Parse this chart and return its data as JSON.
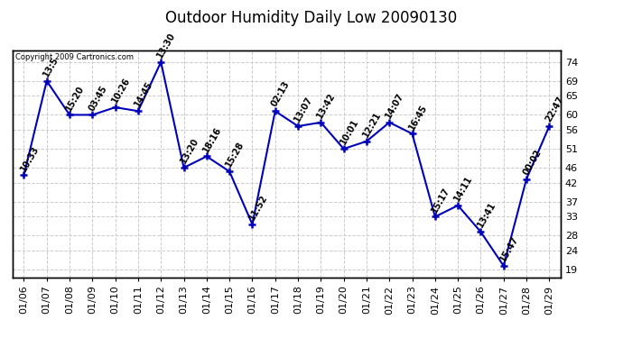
{
  "title": "Outdoor Humidity Daily Low 20090130",
  "copyright": "Copyright 2009 Cartronics.com",
  "x_labels": [
    "01/06",
    "01/07",
    "01/08",
    "01/09",
    "01/10",
    "01/11",
    "01/12",
    "01/13",
    "01/14",
    "01/15",
    "01/16",
    "01/17",
    "01/18",
    "01/19",
    "01/20",
    "01/21",
    "01/22",
    "01/23",
    "01/24",
    "01/25",
    "01/26",
    "01/27",
    "01/28",
    "01/29"
  ],
  "y_values": [
    44,
    69,
    60,
    60,
    62,
    61,
    74,
    46,
    49,
    45,
    31,
    61,
    57,
    58,
    51,
    53,
    58,
    55,
    33,
    36,
    29,
    20,
    43,
    57
  ],
  "point_labels": [
    "10:33",
    "13:5",
    "15:20",
    "03:45",
    "10:26",
    "14:45",
    "13:30",
    "13:20",
    "18:16",
    "15:28",
    "11:52",
    "02:13",
    "13:07",
    "13:42",
    "10:01",
    "12:21",
    "14:07",
    "16:45",
    "15:17",
    "14:11",
    "13:41",
    "15:47",
    "00:02",
    "22:47"
  ],
  "ylim": [
    17,
    77
  ],
  "yticks": [
    19,
    24,
    28,
    33,
    37,
    42,
    46,
    51,
    56,
    60,
    65,
    69,
    74
  ],
  "line_color": "#0000bb",
  "marker_color": "#0000bb",
  "grid_color": "#cccccc",
  "bg_color": "#ffffff",
  "title_fontsize": 12,
  "tick_fontsize": 8,
  "annot_fontsize": 7
}
